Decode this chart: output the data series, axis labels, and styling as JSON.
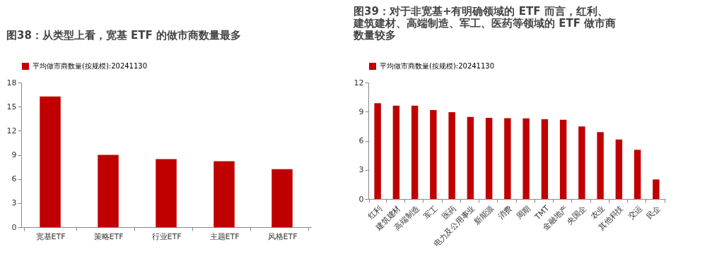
{
  "chart_data": [
    {
      "type": "bar",
      "title": "图38：从类型上看，宽基 ETF 的做市商数量最多",
      "categories": [
        "宽基ETF",
        "策略ETF",
        "行业ETF",
        "主题ETF",
        "风格ETF"
      ],
      "series": [
        {
          "name": "平均做市商数量(按规模):20241130",
          "color": "#c00000",
          "values": [
            16.26,
            9.0,
            8.47,
            8.21,
            7.23
          ]
        }
      ],
      "ylim": [
        0,
        18
      ],
      "yticks": [
        0,
        3,
        6,
        9,
        12,
        15,
        18
      ],
      "grid": false,
      "legend": "top"
    },
    {
      "type": "bar",
      "title": "图39：对于非宽基+有明确领域的 ETF 而言，红利、建筑建材、高端制造、军工、医药等领域的 ETF 做市商数量较多",
      "categories": [
        "红利",
        "建筑建材",
        "高端制造",
        "军工",
        "医药",
        "电力及公用事业",
        "新能源",
        "消费",
        "周期",
        "TMT",
        "金融地产",
        "央国企",
        "农业",
        "其他科技",
        "交运",
        "民企"
      ],
      "series": [
        {
          "name": "平均做市商数量(按规模):20241130",
          "color": "#c00000",
          "values": [
            9.87,
            9.61,
            9.61,
            9.16,
            8.95,
            8.45,
            8.36,
            8.33,
            8.31,
            8.21,
            8.17,
            7.48,
            6.89,
            6.13,
            5.07,
            2.01
          ]
        }
      ],
      "ylim": [
        0,
        12
      ],
      "yticks": [
        0,
        3,
        6,
        9,
        12
      ],
      "grid": false,
      "legend": "top"
    }
  ]
}
